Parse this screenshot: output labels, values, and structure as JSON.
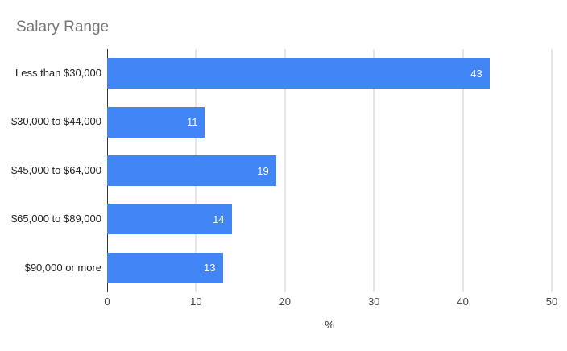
{
  "chart_data": {
    "type": "bar",
    "orientation": "horizontal",
    "title": "Salary Range",
    "categories": [
      "Less than $30,000",
      "$30,000 to $44,000",
      "$45,000 to $64,000",
      "$65,000 to $89,000",
      "$90,000 or more"
    ],
    "values": [
      43,
      11,
      19,
      14,
      13
    ],
    "xlabel": "%",
    "ylabel": "",
    "xlim": [
      0,
      50
    ],
    "xticks": [
      0,
      10,
      20,
      30,
      40,
      50
    ],
    "grid": true,
    "legend": "none",
    "value_labels_inside_bars": true,
    "colors": {
      "background": "#ffffff",
      "bar": "#4285f4",
      "value_label": "#ffffff",
      "title": "#757575",
      "category_label": "#222222",
      "tick_label": "#444444",
      "gridline": "#cccccc",
      "baseline": "#333333"
    }
  }
}
